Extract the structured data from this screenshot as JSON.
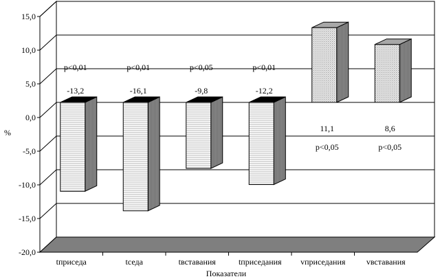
{
  "chart_data": {
    "type": "bar",
    "title": "",
    "xlabel": "Показатели",
    "ylabel": "%",
    "ylim": [
      -20,
      15
    ],
    "yticks": [
      "15,0",
      "10,0",
      "5,0",
      "0,0",
      "-5,0",
      "-10,0",
      "-15,0",
      "-20,0"
    ],
    "grid": true,
    "three_d": true,
    "categories": [
      "tприседа",
      "tседа",
      "tвставания",
      "tприседания",
      "vприседания",
      "vвставания"
    ],
    "values": [
      -13.2,
      -16.1,
      -9.8,
      -12.2,
      11.1,
      8.6
    ],
    "value_labels": [
      "-13,2",
      "-16,1",
      "-9,8",
      "-12,2",
      "11,1",
      "8,6"
    ],
    "p_labels": [
      "p<0,01",
      "p<0,01",
      "p<0,05",
      "p<0,01",
      "p<0,05",
      "p<0,05"
    ],
    "colors": {
      "bar_front": "#d6d6d6",
      "bar_side": "#8a8a8a",
      "bar_top_negative": "#000000",
      "bar_top_positive": "#a8a8a8",
      "floor": "#7f7f7f",
      "gridline": "#000000"
    }
  }
}
